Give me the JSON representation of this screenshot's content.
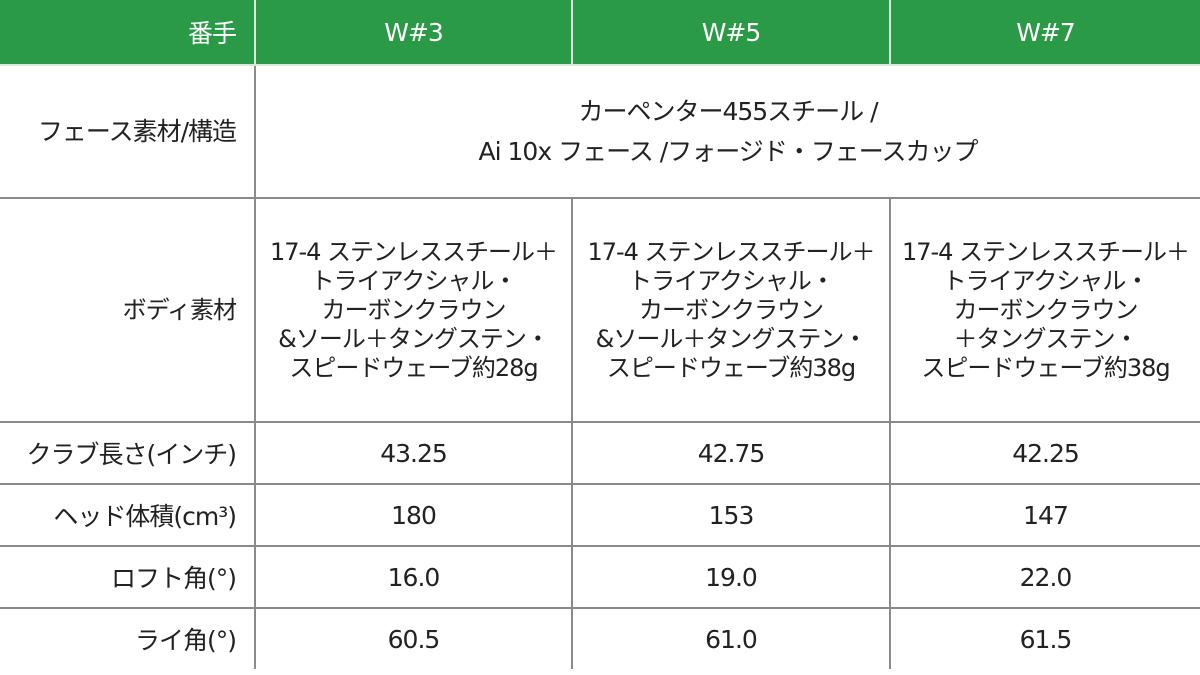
{
  "header": {
    "label": "番手",
    "columns": [
      "W#3",
      "W#5",
      "W#7"
    ]
  },
  "face": {
    "label": "フェース素材/構造",
    "lines": [
      "カーペンター455スチール /",
      "Ai 10x フェース /フォージド・フェースカップ"
    ]
  },
  "body": {
    "label": "ボディ素材",
    "values": [
      [
        "17-4 ステンレススチール＋",
        "トライアクシャル・",
        "カーボンクラウン",
        "&ソール＋タングステン・",
        "スピードウェーブ約28g"
      ],
      [
        "17-4 ステンレススチール＋",
        "トライアクシャル・",
        "カーボンクラウン",
        "&ソール＋タングステン・",
        "スピードウェーブ約38g"
      ],
      [
        "17-4 ステンレススチール＋",
        "トライアクシャル・",
        "カーボンクラウン",
        "＋タングステン・",
        "スピードウェーブ約38g"
      ]
    ]
  },
  "rows": [
    {
      "label": "クラブ長さ(インチ)",
      "values": [
        "43.25",
        "42.75",
        "42.25"
      ]
    },
    {
      "label": "ヘッド体積(cm³)",
      "values": [
        "180",
        "153",
        "147"
      ]
    },
    {
      "label": "ロフト角(°)",
      "values": [
        "16.0",
        "19.0",
        "22.0"
      ]
    },
    {
      "label": "ライ角(°)",
      "values": [
        "60.5",
        "61.0",
        "61.5"
      ]
    }
  ],
  "colors": {
    "header_bg": "#2a9a47",
    "header_text": "#ffffff",
    "border": "#8a8a8a"
  }
}
